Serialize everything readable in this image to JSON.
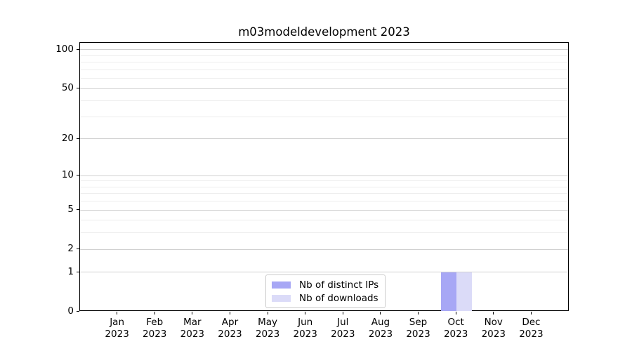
{
  "title": "m03modeldevelopment 2023",
  "chart_data": {
    "type": "bar",
    "title": "m03modeldevelopment 2023",
    "categories": [
      "Jan 2023",
      "Feb 2023",
      "Mar 2023",
      "Apr 2023",
      "May 2023",
      "Jun 2023",
      "Jul 2023",
      "Aug 2023",
      "Sep 2023",
      "Oct 2023",
      "Nov 2023",
      "Dec 2023"
    ],
    "series": [
      {
        "name": "Nb of distinct IPs",
        "color": "#a7a7f5",
        "values": [
          0,
          0,
          0,
          0,
          0,
          0,
          0,
          0,
          0,
          1,
          0,
          0
        ]
      },
      {
        "name": "Nb of downloads",
        "color": "#dbdbf8",
        "values": [
          0,
          0,
          0,
          0,
          0,
          0,
          0,
          0,
          0,
          1,
          0,
          0
        ]
      }
    ],
    "xlabel": "",
    "ylabel": "",
    "y_scale": "log1p",
    "ylim": [
      0,
      113.3
    ],
    "y_major_ticks": [
      0,
      1,
      2,
      5,
      10,
      20,
      50,
      100
    ],
    "y_minor_ticks": [
      3,
      4,
      6,
      7,
      8,
      9,
      30,
      40,
      60,
      70,
      80,
      90
    ],
    "grid": "on",
    "legend_position": "bottom-center-inside"
  },
  "style": {
    "background": "#ffffff",
    "axis_color": "#000000",
    "grid_major_color": "#d0d0d0",
    "grid_minor_color": "#ededed",
    "legend_border_color": "#cccccc",
    "text_color": "#000000"
  }
}
